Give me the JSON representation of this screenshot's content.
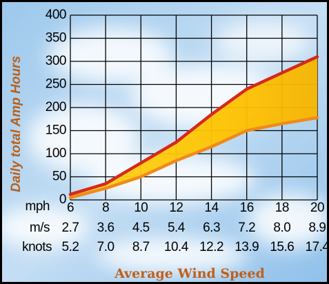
{
  "chart_data": {
    "type": "line",
    "y_label": "Daily total Amp Hours",
    "x_label": "Average Wind Speed",
    "x_unit": "mph",
    "x": [
      6,
      8,
      10,
      12,
      14,
      16,
      18,
      20
    ],
    "xlim": [
      6,
      20
    ],
    "xticks": [
      6,
      8,
      10,
      12,
      14,
      16,
      18,
      20
    ],
    "ylim": [
      0,
      400
    ],
    "yticks": [
      0,
      50,
      100,
      150,
      200,
      250,
      300,
      350,
      400
    ],
    "grid": true,
    "fill_between": true,
    "secondary_x_rows": [
      {
        "unit": "m/s",
        "labels": [
          "2.7",
          "3.6",
          "4.5",
          "5.4",
          "6.3",
          "7.2",
          "8.0",
          "8.9"
        ]
      },
      {
        "unit": "knots",
        "labels": [
          "5.2",
          "7.0",
          "8.7",
          "10.4",
          "12.2",
          "13.9",
          "15.6",
          "17.4"
        ]
      }
    ],
    "series": [
      {
        "color": "#d42a1e",
        "values": [
          12,
          35,
          80,
          125,
          185,
          240,
          275,
          310
        ]
      },
      {
        "color": "#f08a1c",
        "values": [
          5,
          25,
          50,
          85,
          115,
          150,
          165,
          178
        ]
      }
    ]
  }
}
